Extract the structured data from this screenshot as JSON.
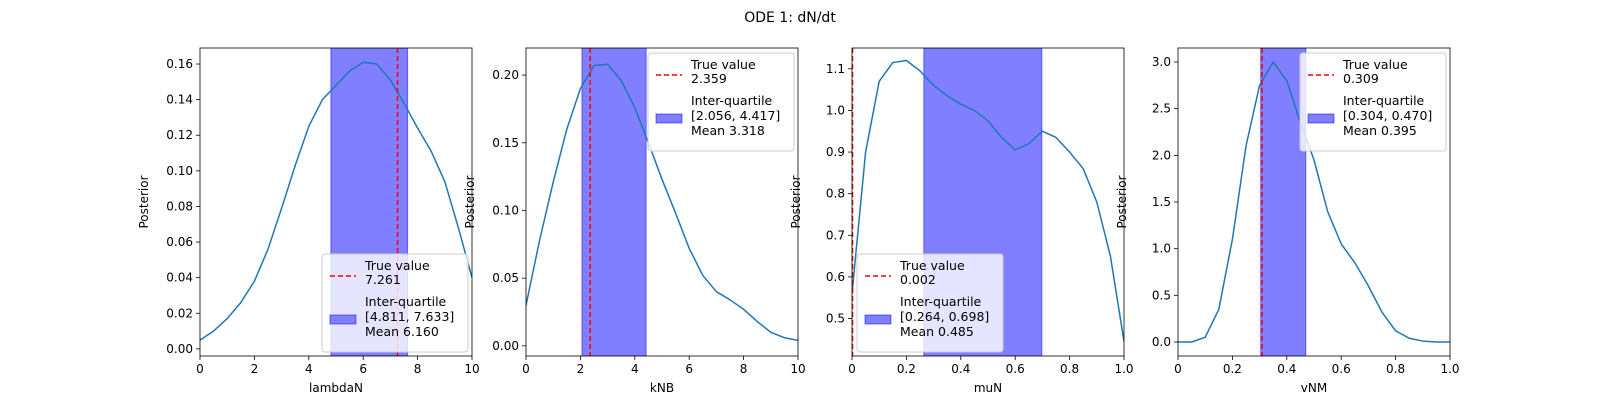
{
  "figure": {
    "title": "ODE 1: dN/dt"
  },
  "colors": {
    "curve": "#1f77b4",
    "true_line": "#ff0000",
    "band": "#7f7fff"
  },
  "chart_data": [
    {
      "type": "area",
      "xlabel": "lambdaN",
      "ylabel": "Posterior",
      "xlim": [
        0,
        10
      ],
      "ylim": [
        -0.004,
        0.169
      ],
      "xticks": [
        0,
        2,
        4,
        6,
        8,
        10
      ],
      "yticks": [
        0.0,
        0.02,
        0.04,
        0.06,
        0.08,
        0.1,
        0.12,
        0.14,
        0.16
      ],
      "ytick_decimals": 2,
      "legend_position": "lower right",
      "true_value": 7.261,
      "interquartile": [
        4.811,
        7.633
      ],
      "mean": 6.16,
      "legend": {
        "true_label": "True value",
        "true_value": "7.261",
        "iq_label": "Inter-quartile",
        "iq_range": "[4.811, 7.633]",
        "mean_text": "Mean 6.160"
      },
      "x": [
        0,
        0.5,
        1,
        1.5,
        2,
        2.5,
        3,
        3.5,
        4,
        4.5,
        5,
        5.5,
        6,
        6.5,
        7,
        7.5,
        8,
        8.5,
        9,
        9.5,
        10
      ],
      "y": [
        0.005,
        0.01,
        0.017,
        0.026,
        0.038,
        0.056,
        0.079,
        0.103,
        0.125,
        0.14,
        0.148,
        0.156,
        0.161,
        0.16,
        0.151,
        0.138,
        0.124,
        0.111,
        0.094,
        0.068,
        0.04
      ]
    },
    {
      "type": "area",
      "xlabel": "kNB",
      "ylabel": "Posterior",
      "xlim": [
        0,
        10
      ],
      "ylim": [
        -0.0075,
        0.22
      ],
      "xticks": [
        0,
        2,
        4,
        6,
        8,
        10
      ],
      "yticks": [
        0.0,
        0.05,
        0.1,
        0.15,
        0.2
      ],
      "ytick_decimals": 2,
      "legend_position": "upper right",
      "true_value": 2.359,
      "interquartile": [
        2.056,
        4.417
      ],
      "mean": 3.318,
      "legend": {
        "true_label": "True value",
        "true_value": "2.359",
        "iq_label": "Inter-quartile",
        "iq_range": "[2.056, 4.417]",
        "mean_text": "Mean 3.318"
      },
      "x": [
        0,
        0.5,
        1,
        1.5,
        2,
        2.5,
        3,
        3.5,
        4,
        4.5,
        5,
        5.5,
        6,
        6.5,
        7,
        7.5,
        8,
        8.5,
        9,
        9.5,
        10
      ],
      "y": [
        0.03,
        0.078,
        0.121,
        0.16,
        0.19,
        0.207,
        0.208,
        0.196,
        0.176,
        0.15,
        0.123,
        0.098,
        0.072,
        0.052,
        0.04,
        0.034,
        0.027,
        0.018,
        0.01,
        0.006,
        0.004
      ]
    },
    {
      "type": "area",
      "xlabel": "muN",
      "ylabel": "Posterior",
      "xlim": [
        0,
        1
      ],
      "ylim": [
        0.41,
        1.15
      ],
      "xticks": [
        0,
        0.2,
        0.4,
        0.6,
        0.8,
        1.0
      ],
      "yticks": [
        0.5,
        0.6,
        0.7,
        0.8,
        0.9,
        1.0,
        1.1
      ],
      "ytick_decimals": 1,
      "legend_position": "lower left",
      "true_value": 0.002,
      "interquartile": [
        0.264,
        0.698
      ],
      "mean": 0.485,
      "legend": {
        "true_label": "True value",
        "true_value": "0.002",
        "iq_label": "Inter-quartile",
        "iq_range": "[0.264, 0.698]",
        "mean_text": "Mean 0.485"
      },
      "x": [
        0,
        0.05,
        0.1,
        0.15,
        0.2,
        0.25,
        0.3,
        0.35,
        0.4,
        0.45,
        0.5,
        0.55,
        0.6,
        0.65,
        0.7,
        0.75,
        0.8,
        0.85,
        0.9,
        0.95,
        1.0
      ],
      "y": [
        0.56,
        0.9,
        1.07,
        1.115,
        1.12,
        1.095,
        1.06,
        1.035,
        1.015,
        1.0,
        0.975,
        0.935,
        0.905,
        0.92,
        0.95,
        0.935,
        0.9,
        0.86,
        0.78,
        0.65,
        0.445
      ]
    },
    {
      "type": "area",
      "xlabel": "vNM",
      "ylabel": "Posterior",
      "xlim": [
        0,
        1
      ],
      "ylim": [
        -0.15,
        3.15
      ],
      "xticks": [
        0,
        0.2,
        0.4,
        0.6,
        0.8,
        1.0
      ],
      "yticks": [
        0.0,
        0.5,
        1.0,
        1.5,
        2.0,
        2.5,
        3.0
      ],
      "ytick_decimals": 1,
      "legend_position": "upper right",
      "true_value": 0.309,
      "interquartile": [
        0.304,
        0.47
      ],
      "mean": 0.395,
      "legend": {
        "true_label": "True value",
        "true_value": "0.309",
        "iq_label": "Inter-quartile",
        "iq_range": "[0.304, 0.470]",
        "mean_text": "Mean 0.395"
      },
      "x": [
        0,
        0.05,
        0.1,
        0.15,
        0.2,
        0.25,
        0.3,
        0.35,
        0.4,
        0.45,
        0.5,
        0.55,
        0.6,
        0.65,
        0.7,
        0.75,
        0.8,
        0.85,
        0.9,
        0.95,
        1.0
      ],
      "y": [
        0.0,
        0.0,
        0.05,
        0.35,
        1.1,
        2.1,
        2.75,
        3.0,
        2.8,
        2.35,
        1.95,
        1.4,
        1.05,
        0.85,
        0.6,
        0.32,
        0.12,
        0.04,
        0.01,
        0.0,
        0.0
      ]
    }
  ]
}
